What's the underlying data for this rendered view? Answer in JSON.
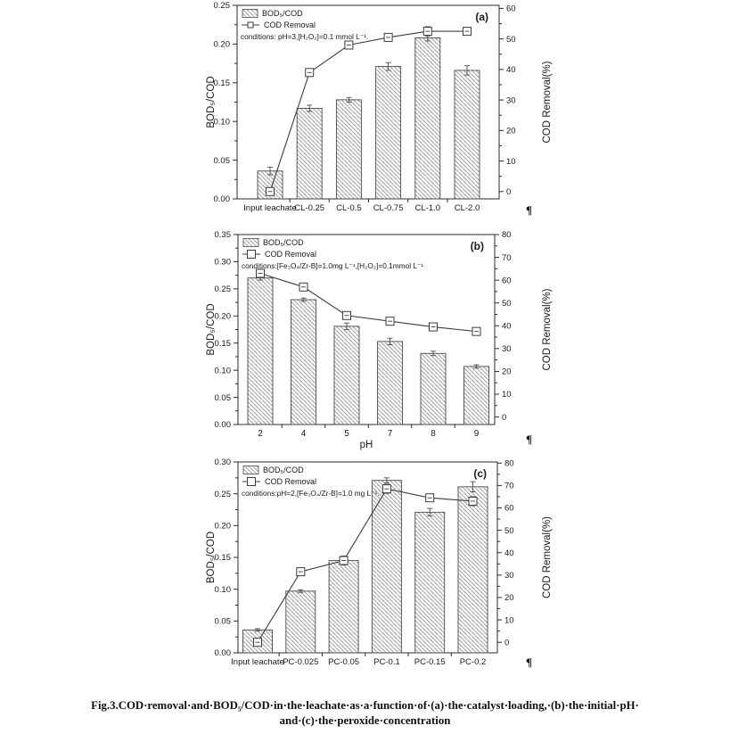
{
  "figure": {
    "caption_line1": "Fig.3.COD·removal·and·BOD₅/COD·in·the·leachate·as·a·function·of·(a)·the·catalyst·loading,·(b)·the·initial·pH·",
    "caption_line2": "and·(c)·the·peroxide·concentration",
    "paragraph_mark": "¶"
  },
  "colors": {
    "hatch": "#8f8f8f",
    "bar_border": "#4a4a4a",
    "line": "#3d3d3d",
    "frame": "#2b2b2b",
    "text": "#1a1a1a",
    "background": "#ffffff"
  },
  "chart_data": [
    {
      "id": "a",
      "type": "bar",
      "panel_label": "(a)",
      "legend": {
        "bar": "BOD₅/COD",
        "line": "COD Removal"
      },
      "conditions": "conditions: pH=3,[H₂O₂]=0.1 mmol L⁻¹.",
      "categories": [
        "Input leachate",
        "CL-0.25",
        "CL-0.5",
        "CL-0.75",
        "CL-1.0",
        "CL-2.0"
      ],
      "xlabel": "",
      "left_axis": {
        "label": "BOD₅/COD",
        "min": 0,
        "max": 0.25,
        "tick_step": 0.05,
        "decimals": 2
      },
      "right_axis": {
        "label": "COD Removal(%)",
        "tick_min": 0,
        "tick_max": 60,
        "tick_step": 10,
        "range": [
          -2.4,
          61
        ]
      },
      "series": [
        {
          "name": "BOD₅/COD",
          "type": "bar",
          "axis": "left",
          "values": [
            0.036,
            0.117,
            0.128,
            0.171,
            0.208,
            0.166
          ],
          "errors": [
            0.005,
            0.004,
            0.003,
            0.005,
            0.004,
            0.006
          ]
        },
        {
          "name": "COD Removal",
          "type": "line",
          "axis": "right",
          "values": [
            0,
            39,
            48,
            50.5,
            52.5,
            52.5
          ],
          "errors": [
            0.8,
            1.2,
            1.2,
            1.2,
            1.5,
            1.2
          ]
        }
      ]
    },
    {
      "id": "b",
      "type": "bar",
      "panel_label": "(b)",
      "legend": {
        "bar": "BOD₅/COD",
        "line": "COD Removal"
      },
      "conditions": "conditions:[Fe₃O₄/Zr-B]=1.0mg L⁻¹,[H₂O₂]=0.1mmol L⁻¹",
      "categories": [
        "2",
        "4",
        "5",
        "7",
        "8",
        "9"
      ],
      "xlabel": "pH",
      "left_axis": {
        "label": "BOD₅/COD",
        "min": 0,
        "max": 0.35,
        "tick_step": 0.05,
        "decimals": 2
      },
      "right_axis": {
        "label": "COD Removal(%)",
        "tick_min": 0,
        "tick_max": 80,
        "tick_step": 10,
        "range": [
          -3.3,
          80
        ]
      },
      "series": [
        {
          "name": "BOD₅/COD",
          "type": "bar",
          "axis": "left",
          "values": [
            0.27,
            0.23,
            0.181,
            0.153,
            0.131,
            0.107
          ],
          "errors": [
            0.004,
            0.003,
            0.006,
            0.006,
            0.004,
            0.003
          ]
        },
        {
          "name": "COD Removal",
          "type": "line",
          "axis": "right",
          "values": [
            63,
            57,
            44.5,
            42,
            39.5,
            37.5
          ],
          "errors": [
            1,
            1,
            1,
            1,
            1,
            1
          ]
        }
      ]
    },
    {
      "id": "c",
      "type": "bar",
      "panel_label": "(c)",
      "legend": {
        "bar": "BOD₅/COD",
        "line": "COD Removal"
      },
      "conditions": "conditions:pH=2,[Fe₃O₄/Zr-B]=1.0 mg L⁻¹.",
      "categories": [
        "Input leachate",
        "PC-0.025",
        "PC-0.05",
        "PC-0.1",
        "PC-0.15",
        "PC-0.2"
      ],
      "xlabel": "",
      "left_axis": {
        "label": "BOD₅/COD",
        "min": 0,
        "max": 0.3,
        "tick_step": 0.05,
        "decimals": 2
      },
      "right_axis": {
        "label": "COD Removal(%)",
        "tick_min": 0,
        "tick_max": 80,
        "tick_step": 10,
        "range": [
          -4.7,
          80.5
        ]
      },
      "series": [
        {
          "name": "BOD₅/COD",
          "type": "bar",
          "axis": "left",
          "values": [
            0.036,
            0.097,
            0.145,
            0.271,
            0.221,
            0.261
          ],
          "errors": [
            0.002,
            0.002,
            0.004,
            0.004,
            0.006,
            0.008
          ]
        },
        {
          "name": "COD Removal",
          "type": "line",
          "axis": "right",
          "values": [
            0,
            31.5,
            36.5,
            68.5,
            64.5,
            63
          ],
          "errors": [
            1.5,
            1.5,
            2,
            2,
            1.5,
            2
          ]
        }
      ]
    }
  ]
}
